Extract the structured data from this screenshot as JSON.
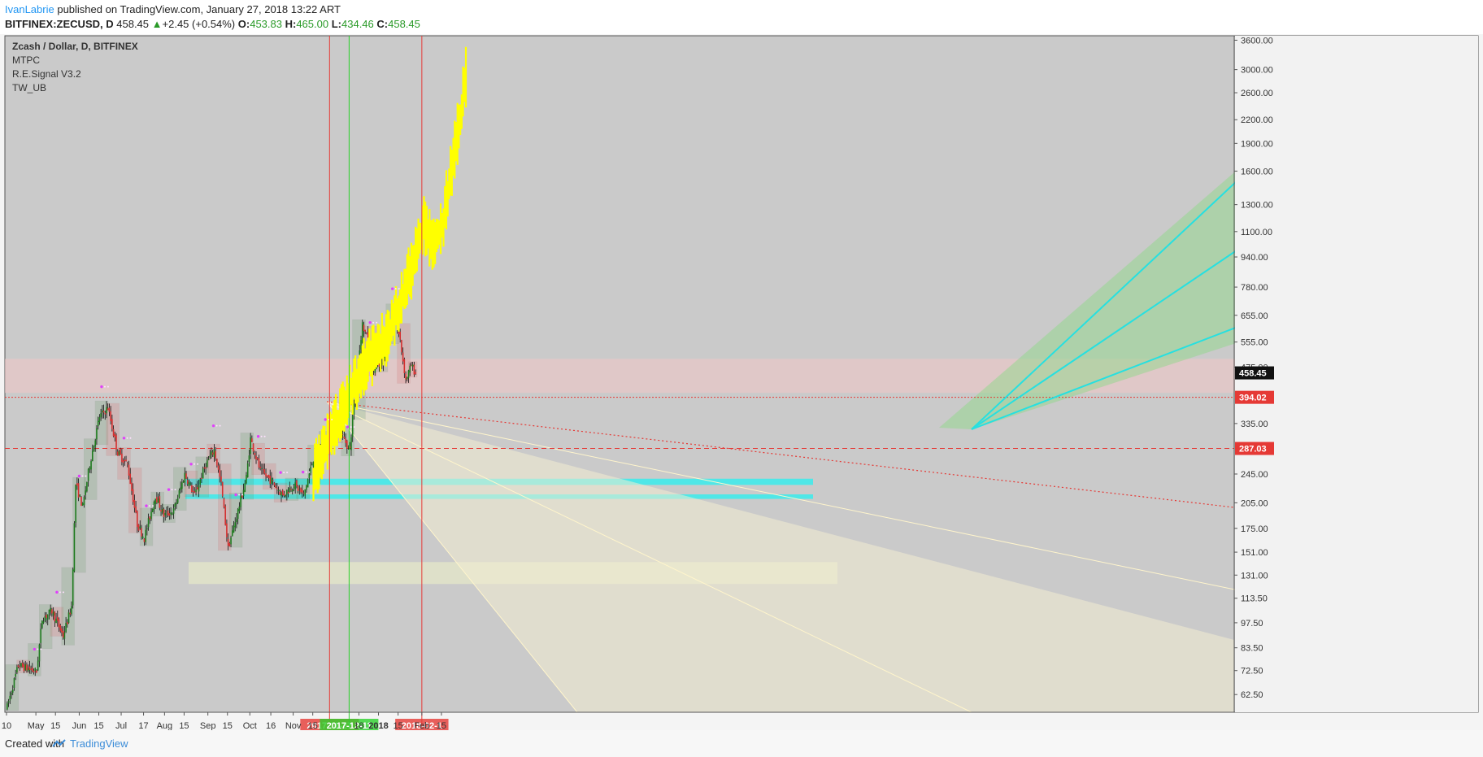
{
  "header": {
    "author": "IvanLabrie",
    "published_text": "published on TradingView.com, January 27, 2018 13:22 ART",
    "symbol": "BITFINEX:ZECUSD, D",
    "last": "458.45",
    "change": "+2.45 (+0.54%)",
    "o_label": "O:",
    "o_val": "453.83",
    "h_label": "H:",
    "h_val": "465.00",
    "l_label": "L:",
    "l_val": "434.46",
    "c_label": "C:",
    "c_val": "458.45"
  },
  "legend": {
    "title": "Zcash / Dollar, D, BITFINEX",
    "indicators": [
      "MTPC",
      "R.E.Signal V3.2",
      "TW_UB"
    ]
  },
  "footer": {
    "created": "Created with",
    "brand": "TradingView"
  },
  "colors": {
    "bull": "#1e7a1e",
    "bear": "#d32f2f",
    "projection": "#ffff00",
    "cyan": "#26e0e0",
    "pane": "#cacaca",
    "marker_red": "#e53935",
    "marker_green": "#2bd12b"
  },
  "chart_data": {
    "type": "candlestick",
    "scale": "log",
    "ylim": [
      56,
      3700
    ],
    "y_ticks": [
      "3600.00",
      "3000.00",
      "2600.00",
      "2200.00",
      "1900.00",
      "1600.00",
      "1300.00",
      "1100.00",
      "940.00",
      "780.00",
      "655.00",
      "555.00",
      "475.00",
      "335.00",
      "245.00",
      "205.00",
      "175.00",
      "151.00",
      "131.00",
      "113.50",
      "97.50",
      "83.50",
      "72.50",
      "62.50"
    ],
    "x_ticks": [
      "10",
      "May",
      "15",
      "Jun",
      "15",
      "Jul",
      "17",
      "Aug",
      "15",
      "Sep",
      "15",
      "Oct",
      "16",
      "Nov",
      "15",
      "18",
      "2018",
      "15",
      "Feb",
      "15"
    ],
    "last_price": "458.45",
    "levels": [
      {
        "label": "394.02",
        "value": 394.02,
        "style": "dotted"
      },
      {
        "label": "287.03",
        "value": 287.03,
        "style": "dashed"
      }
    ],
    "markers": [
      {
        "label": "2017-11-27",
        "date": "2017-11-27",
        "color": "red"
      },
      {
        "label": "2017-12-11",
        "date": "2017-12-11",
        "color": "green"
      },
      {
        "label": "2018-02-1",
        "date": "2018-02-1",
        "color": "red"
      }
    ],
    "zones": [
      {
        "name": "resistance-zone",
        "from": 405,
        "to": 500
      },
      {
        "name": "support-band-upper",
        "from": 229,
        "to": 238
      },
      {
        "name": "support-band-lower",
        "from": 210,
        "to": 216
      },
      {
        "name": "lower-support-zone",
        "from": 124,
        "to": 142
      }
    ],
    "ohlc_anchors": [
      {
        "date": "2017-04-10",
        "close": 58
      },
      {
        "date": "2017-04-18",
        "close": 75
      },
      {
        "date": "2017-05-01",
        "close": 72
      },
      {
        "date": "2017-05-05",
        "close": 100
      },
      {
        "date": "2017-05-12",
        "close": 105
      },
      {
        "date": "2017-05-20",
        "close": 90
      },
      {
        "date": "2017-05-26",
        "close": 108
      },
      {
        "date": "2017-05-29",
        "close": 230
      },
      {
        "date": "2017-06-03",
        "close": 200
      },
      {
        "date": "2017-06-08",
        "close": 260
      },
      {
        "date": "2017-06-15",
        "close": 350
      },
      {
        "date": "2017-06-21",
        "close": 370
      },
      {
        "date": "2017-06-28",
        "close": 280
      },
      {
        "date": "2017-07-05",
        "close": 260
      },
      {
        "date": "2017-07-12",
        "close": 180
      },
      {
        "date": "2017-07-17",
        "close": 165
      },
      {
        "date": "2017-07-25",
        "close": 215
      },
      {
        "date": "2017-07-31",
        "close": 190
      },
      {
        "date": "2017-08-07",
        "close": 195
      },
      {
        "date": "2017-08-15",
        "close": 245
      },
      {
        "date": "2017-08-22",
        "close": 215
      },
      {
        "date": "2017-08-30",
        "close": 260
      },
      {
        "date": "2017-09-05",
        "close": 285
      },
      {
        "date": "2017-09-10",
        "close": 230
      },
      {
        "date": "2017-09-15",
        "close": 155
      },
      {
        "date": "2017-09-22",
        "close": 195
      },
      {
        "date": "2017-09-28",
        "close": 240
      },
      {
        "date": "2017-10-01",
        "close": 305
      },
      {
        "date": "2017-10-08",
        "close": 250
      },
      {
        "date": "2017-10-16",
        "close": 235
      },
      {
        "date": "2017-10-24",
        "close": 215
      },
      {
        "date": "2017-11-01",
        "close": 230
      },
      {
        "date": "2017-11-08",
        "close": 215
      },
      {
        "date": "2017-11-15",
        "close": 270
      },
      {
        "date": "2017-11-21",
        "close": 290
      },
      {
        "date": "2017-11-27",
        "close": 310
      },
      {
        "date": "2017-12-04",
        "close": 320
      },
      {
        "date": "2017-12-11",
        "close": 285
      },
      {
        "date": "2017-12-15",
        "close": 420
      },
      {
        "date": "2017-12-20",
        "close": 620
      },
      {
        "date": "2017-12-24",
        "close": 560
      },
      {
        "date": "2017-12-28",
        "close": 470
      },
      {
        "date": "2018-01-03",
        "close": 480
      },
      {
        "date": "2018-01-07",
        "close": 600
      },
      {
        "date": "2018-01-11",
        "close": 680
      },
      {
        "date": "2018-01-16",
        "close": 560
      },
      {
        "date": "2018-01-20",
        "close": 440
      },
      {
        "date": "2018-01-24",
        "close": 480
      },
      {
        "date": "2018-01-27",
        "close": 458
      }
    ],
    "projection_anchors": [
      {
        "date": "2017-11-15",
        "close": 245
      },
      {
        "date": "2017-12-05",
        "close": 360
      },
      {
        "date": "2017-12-20",
        "close": 480
      },
      {
        "date": "2018-01-05",
        "close": 560
      },
      {
        "date": "2018-01-15",
        "close": 700
      },
      {
        "date": "2018-01-25",
        "close": 900
      },
      {
        "date": "2018-02-02",
        "close": 1150
      },
      {
        "date": "2018-02-09",
        "close": 1000
      },
      {
        "date": "2018-02-16",
        "close": 1200
      },
      {
        "date": "2018-02-26",
        "close": 2000
      },
      {
        "date": "2018-03-05",
        "close": 3000
      }
    ]
  }
}
